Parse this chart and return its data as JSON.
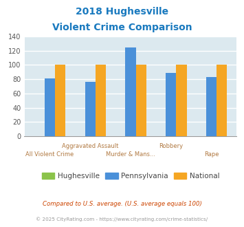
{
  "title_line1": "2018 Hughesville",
  "title_line2": "Violent Crime Comparison",
  "categories": [
    "All Violent Crime",
    "Aggravated Assault",
    "Murder & Mans...",
    "Robbery",
    "Rape"
  ],
  "hughesville": [
    0,
    0,
    0,
    0,
    0
  ],
  "pennsylvania": [
    81,
    76,
    124,
    89,
    83
  ],
  "national": [
    100,
    100,
    100,
    100,
    100
  ],
  "colors": {
    "hughesville": "#8bc34a",
    "pennsylvania": "#4a90d9",
    "national": "#f5a623"
  },
  "ylim": [
    0,
    140
  ],
  "yticks": [
    0,
    20,
    40,
    60,
    80,
    100,
    120,
    140
  ],
  "title_color": "#1a7abf",
  "xlabel_color": "#b07840",
  "legend_label_color": "#444444",
  "footer_text1": "Compared to U.S. average. (U.S. average equals 100)",
  "footer_text2": "© 2025 CityRating.com - https://www.cityrating.com/crime-statistics/",
  "footer1_color": "#cc4400",
  "footer2_color": "#999999",
  "bg_color": "#dce9ef",
  "fig_bg": "#ffffff",
  "grid_color": "#ffffff"
}
